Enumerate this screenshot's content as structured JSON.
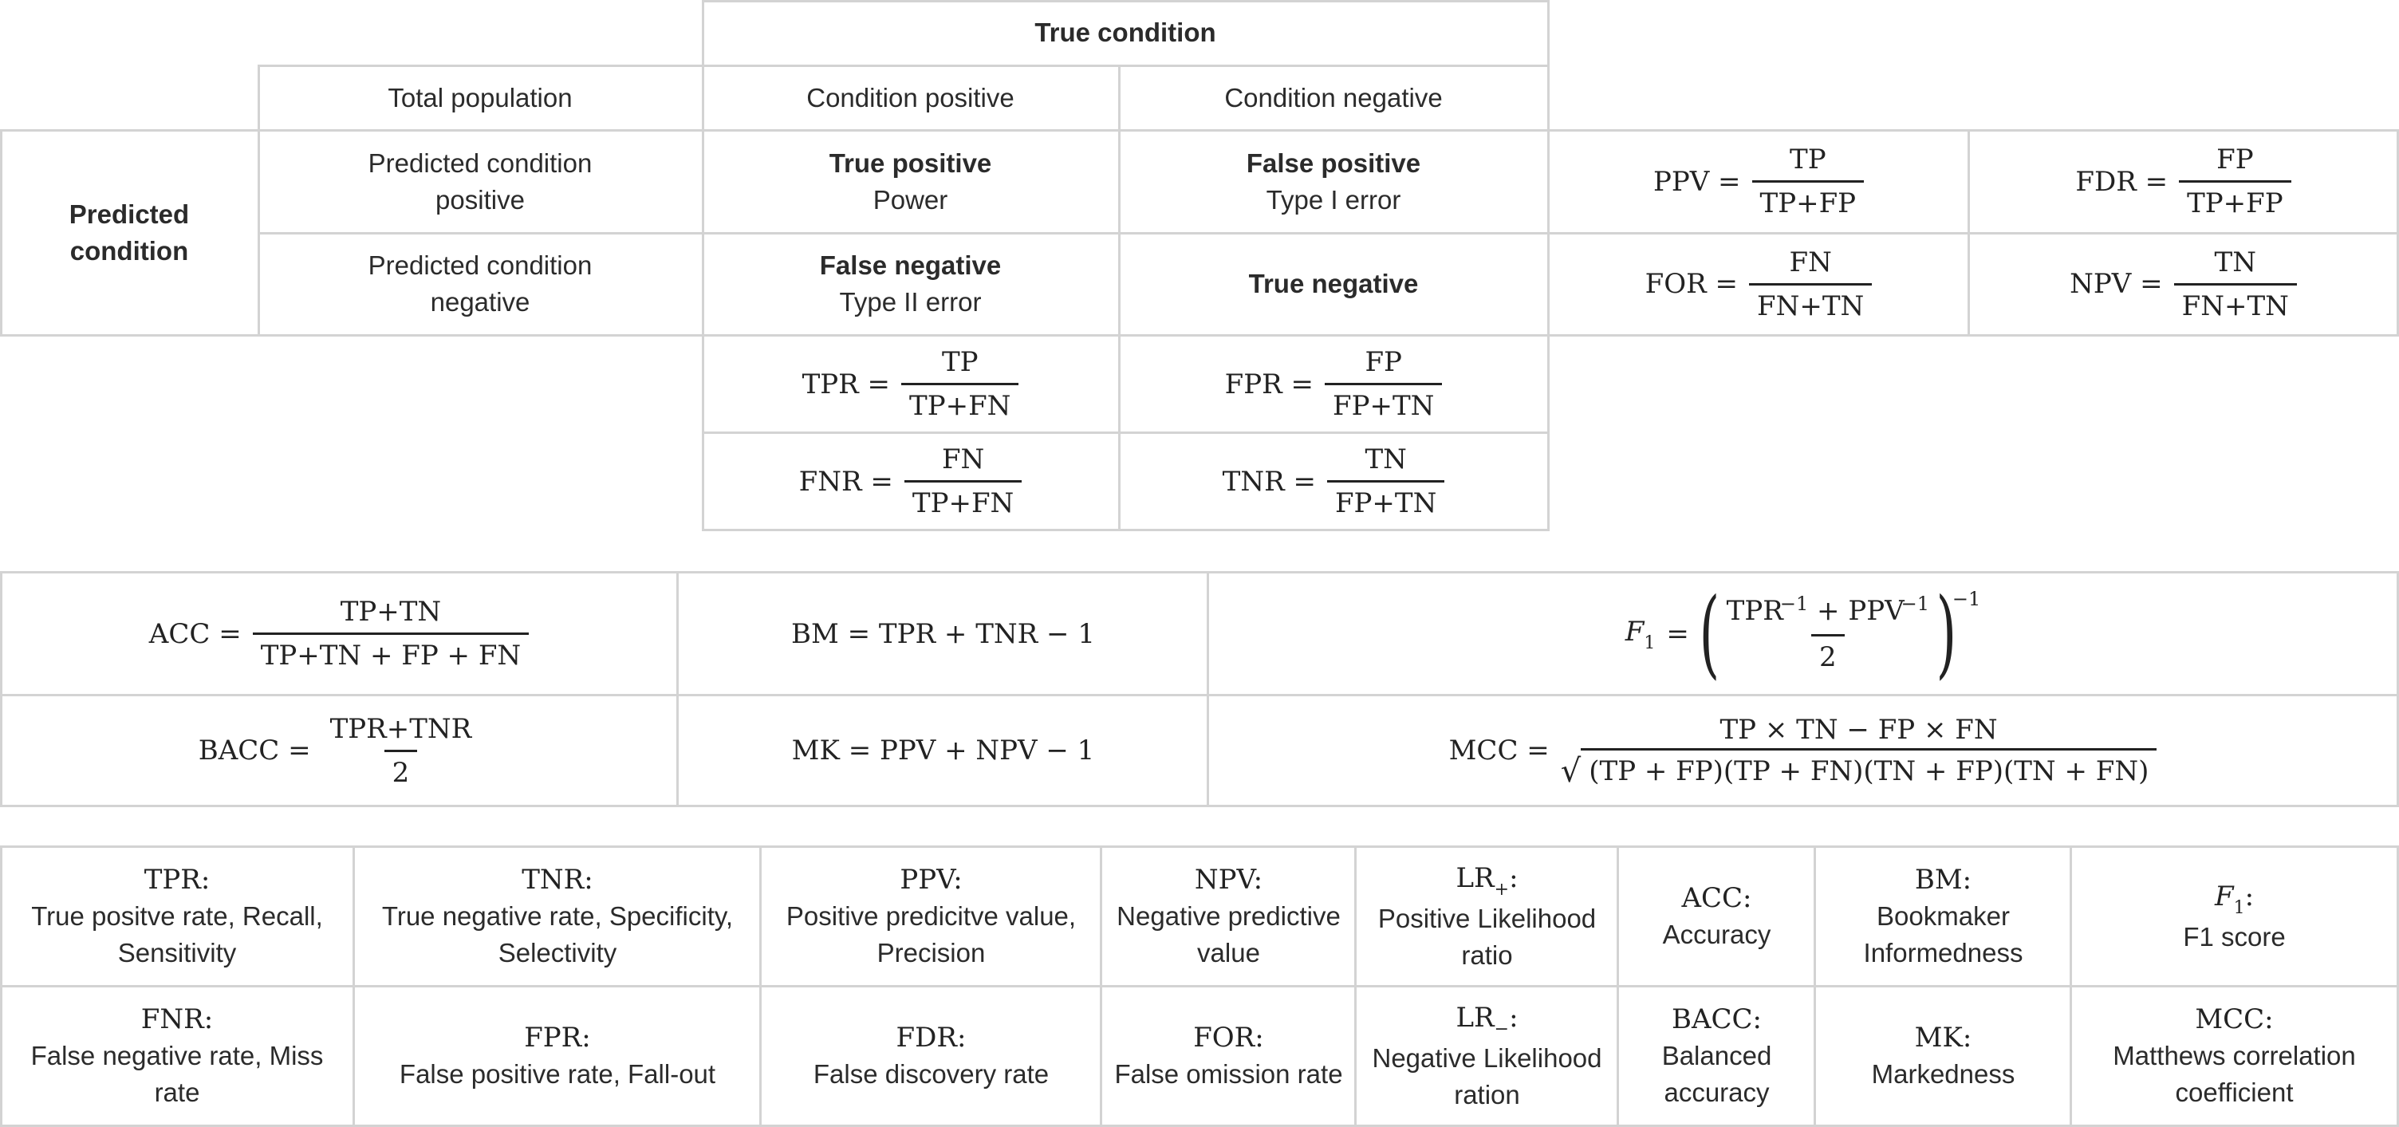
{
  "confusion": {
    "true_condition": "True condition",
    "total_population": "Total population",
    "condition_positive": "Condition positive",
    "condition_negative": "Condition negative",
    "predicted_condition": "Predicted condition",
    "pred_pos_label": "Predicted condition positive",
    "pred_neg_label": "Predicted condition negative",
    "tp_title": "True positive",
    "tp_sub": "Power",
    "fp_title": "False positive",
    "fp_sub": "Type I error",
    "fn_title": "False negative",
    "fn_sub": "Type II error",
    "tn_title": "True negative"
  },
  "formulas": {
    "ppv": {
      "lhs": "PPV =",
      "num": "TP",
      "den": "TP+FP"
    },
    "fdr": {
      "lhs": "FDR =",
      "num": "FP",
      "den": "TP+FP"
    },
    "for": {
      "lhs": "FOR =",
      "num": "FN",
      "den": "FN+TN"
    },
    "npv": {
      "lhs": "NPV =",
      "num": "TN",
      "den": "FN+TN"
    },
    "tpr": {
      "lhs": "TPR =",
      "num": "TP",
      "den": "TP+FN"
    },
    "fpr": {
      "lhs": "FPR =",
      "num": "FP",
      "den": "FP+TN"
    },
    "fnr": {
      "lhs": "FNR =",
      "num": "FN",
      "den": "TP+FN"
    },
    "tnr": {
      "lhs": "TNR =",
      "num": "TN",
      "den": "FP+TN"
    },
    "acc": {
      "lhs": "ACC =",
      "num": "TP+TN",
      "den": "TP+TN + FP + FN"
    },
    "bm": "BM = TPR + TNR − 1",
    "f1": {
      "lhs": "=",
      "num": "TPR + PPV",
      "den": "2",
      "exp": "−1",
      "inner_exp": "−1"
    },
    "bacc": {
      "lhs": "BACC =",
      "num": "TPR+TNR",
      "den": "2"
    },
    "mk": "MK = PPV + NPV − 1",
    "mcc": {
      "lhs": "MCC =",
      "num": "TP × TN − FP × FN",
      "den": "(TP + FP)(TP + FN)(TN + FP)(TN + FN)"
    }
  },
  "glossary": {
    "row1": [
      {
        "abbr": "TPR:",
        "desc": "True positve rate, Recall, Sensitivity"
      },
      {
        "abbr": "TNR:",
        "desc": "True negative rate, Specificity, Selectivity"
      },
      {
        "abbr": "PPV:",
        "desc": "Positive predicitve value, Precision"
      },
      {
        "abbr": "NPV:",
        "desc": "Negative predictive value"
      },
      {
        "abbr": "LR",
        "sub": "+",
        "desc": "Positive Likelihood ratio"
      },
      {
        "abbr": "ACC:",
        "desc": "Accuracy"
      },
      {
        "abbr": "BM:",
        "desc": "Bookmaker Informedness"
      },
      {
        "abbr": "F",
        "sub": "1",
        "desc": "F1 score"
      }
    ],
    "row2": [
      {
        "abbr": "FNR:",
        "desc": "False negative rate, Miss rate"
      },
      {
        "abbr": "FPR:",
        "desc": "False positive rate, Fall-out"
      },
      {
        "abbr": "FDR:",
        "desc": "False discovery rate"
      },
      {
        "abbr": "FOR:",
        "desc": "False omission rate"
      },
      {
        "abbr": "LR",
        "sub": "−",
        "desc": "Negative Likelihood ration"
      },
      {
        "abbr": "BACC:",
        "desc": "Balanced accuracy"
      },
      {
        "abbr": "MK:",
        "desc": "Markedness"
      },
      {
        "abbr": "MCC:",
        "desc": "Matthews correlation coefficient"
      }
    ]
  }
}
